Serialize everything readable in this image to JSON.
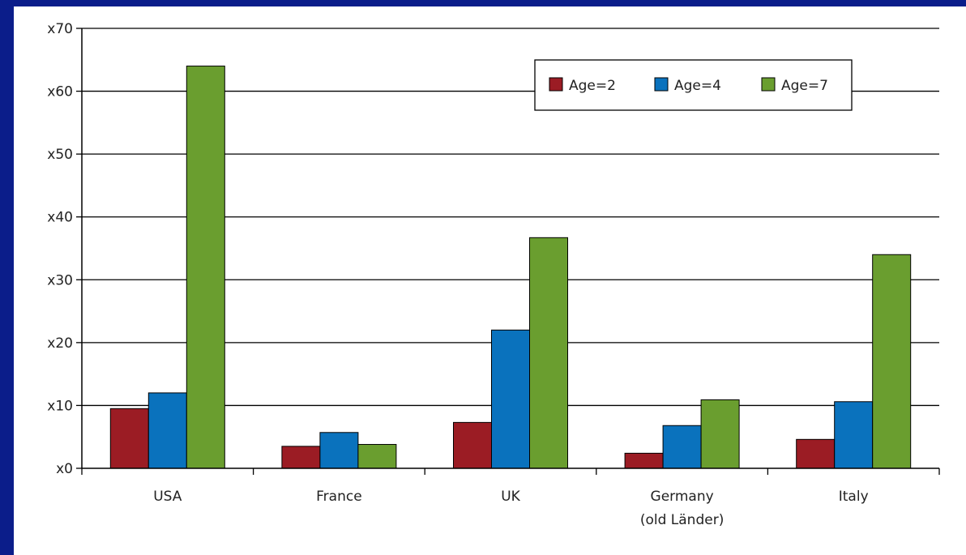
{
  "chart_data": {
    "type": "bar",
    "categories": [
      "USA",
      "France",
      "UK",
      "Germany (old Länder)",
      "Italy"
    ],
    "category_lines": [
      [
        "USA"
      ],
      [
        "France"
      ],
      [
        "UK"
      ],
      [
        "Germany",
        "(old Länder)"
      ],
      [
        "Italy"
      ]
    ],
    "series": [
      {
        "name": "Age=2",
        "color": "#9b1c24",
        "values": [
          9.5,
          3.5,
          7.3,
          2.4,
          4.6
        ]
      },
      {
        "name": "Age=4",
        "color": "#0a72bd",
        "values": [
          12,
          5.7,
          22,
          6.8,
          10.6
        ]
      },
      {
        "name": "Age=7",
        "color": "#6a9e2f",
        "values": [
          64,
          3.8,
          36.7,
          10.9,
          34
        ]
      }
    ],
    "y_ticks": [
      "x0",
      "x10",
      "x20",
      "x30",
      "x40",
      "x50",
      "x60",
      "x70"
    ],
    "ylim": [
      0,
      70
    ],
    "grid": true,
    "legend_position": "top-right",
    "title": "",
    "xlabel": "",
    "ylabel": ""
  }
}
